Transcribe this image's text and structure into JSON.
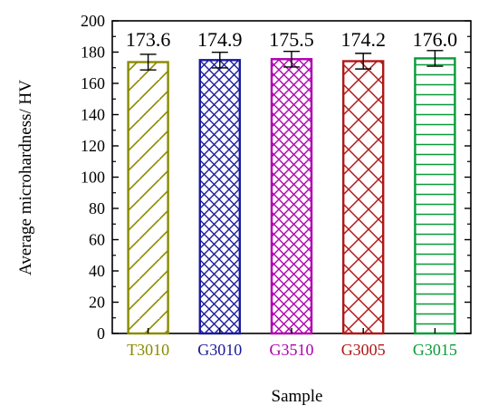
{
  "chart_data": {
    "type": "bar",
    "categories": [
      "T3010",
      "G3010",
      "G3510",
      "G3005",
      "G3015"
    ],
    "values": [
      173.6,
      174.9,
      175.5,
      174.2,
      176.0
    ],
    "value_labels": [
      "173.6",
      "174.9",
      "175.5",
      "174.2",
      "176.0"
    ],
    "errors": [
      5,
      5,
      5,
      5,
      5
    ],
    "colors": [
      "#8a8a00",
      "#1a1a9e",
      "#b000b0",
      "#b01818",
      "#0a9a3a"
    ],
    "patterns": [
      "diag-right",
      "crosshatch-diag",
      "crosshatch-diag",
      "crosshatch-diag-wide",
      "horizontal"
    ],
    "xlabel": "Sample",
    "ylabel": "Average microhardness/ HV",
    "ylim": [
      0,
      200
    ],
    "yticks": [
      "0",
      "20",
      "40",
      "60",
      "80",
      "100",
      "120",
      "140",
      "160",
      "180",
      "200"
    ],
    "grid": false
  }
}
